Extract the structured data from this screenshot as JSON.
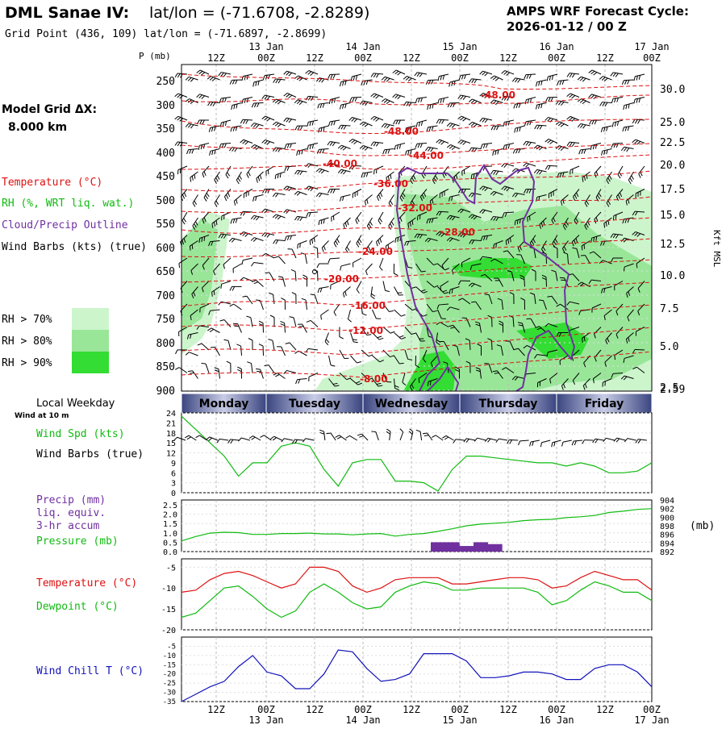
{
  "header": {
    "station": "DML Sanae IV:",
    "latlon": "lat/lon = (-71.6708, -2.8289)",
    "grid_point": "Grid Point (436, 109) lat/lon = (-71.6897, -2.8699)",
    "cycle_title": "AMPS WRF Forecast Cycle:",
    "cycle_value": "2026-01-12 / 00  Z"
  },
  "legend": {
    "model_grid": "Model Grid ΔX:",
    "model_grid_value": "8.000 km",
    "temperature": "Temperature (°C)",
    "rh": "RH (%, WRT liq. wat.)",
    "cloud": "Cloud/Precip Outline",
    "wind_barbs": "Wind Barbs (kts) (true)",
    "rh70": "RH > 70%",
    "rh80": "RH > 80%",
    "rh90": "RH > 90%",
    "local_weekday": "Local Weekday",
    "wind_10m": "Wind at 10 m",
    "wind_spd": "Wind Spd (kts)",
    "wind_barbs2": "Wind Barbs (true)",
    "precip": "Precip (mm)",
    "liq": "liq. equiv.",
    "accum": "3-hr accum",
    "pressure": "Pressure (mb)",
    "mb_unit": "(mb)",
    "temp2": "Temperature (°C)",
    "dewpoint": "Dewpoint (°C)",
    "windchill": "Wind Chill T (°C)",
    "p_axis": "P (mb)",
    "kft": "Kft MSL"
  },
  "colors": {
    "temp": "#dd1111",
    "rh_green": "#11bb11",
    "cloud": "#7030a0",
    "windchill": "#1111bb",
    "rh70": "#ccf5cc",
    "rh80": "#99e699",
    "rh90": "#33dd33",
    "banner_dark": "#3a4580",
    "banner_light": "#c8cce6"
  },
  "chart_data": [
    {
      "type": "time-height",
      "title": "Vertical profile",
      "time_labels_top": [
        "12Z",
        "00Z",
        "12Z",
        "00Z",
        "12Z",
        "00Z",
        "12Z",
        "00Z",
        "12Z",
        "00Z"
      ],
      "date_labels_top": [
        "13 Jan",
        "14 Jan",
        "15 Jan",
        "16 Jan",
        "17 Jan"
      ],
      "pressure_levels": [
        "250",
        "300",
        "350",
        "400",
        "450",
        "500",
        "550",
        "600",
        "650",
        "700",
        "750",
        "800",
        "850",
        "900"
      ],
      "height_labels": [
        "30.0",
        "25.0",
        "22.5",
        "20.0",
        "17.5",
        "15.0",
        "12.5",
        "10.0",
        "7.5",
        "5.0",
        "2.5",
        "2.59"
      ],
      "temperature_contours": [
        "-48.00",
        "-48.00",
        "-44.00",
        "-40.00",
        "-36.00",
        "-32.00",
        "-28.00",
        "-24.00",
        "-20.00",
        "-16.00",
        "-12.00",
        "-8.00"
      ]
    },
    {
      "type": "line",
      "title": "Wind Spd (kts)",
      "weekdays": [
        "Monday",
        "Tuesday",
        "Wednesday",
        "Thursday",
        "Friday"
      ],
      "yticks": [
        "24",
        "21",
        "18",
        "15",
        "12",
        "9",
        "6",
        "3",
        "0"
      ],
      "ylim": [
        0,
        24
      ],
      "series": [
        {
          "name": "Wind Spd",
          "values": [
            23,
            19,
            15,
            11,
            5,
            9,
            9,
            14,
            15,
            14,
            7,
            2,
            9,
            10,
            10,
            3.5,
            3.5,
            3,
            0.5,
            7,
            11,
            11,
            10.5,
            10,
            9.5,
            9,
            9,
            8,
            9,
            8,
            6,
            6,
            6.5,
            9
          ]
        }
      ]
    },
    {
      "type": "line+bar",
      "title": "Precip / Pressure",
      "yticks_left": [
        "2.5",
        "2.0",
        "1.5",
        "1.0",
        "0.5",
        "0.0"
      ],
      "yticks_right": [
        "904",
        "902",
        "900",
        "898",
        "896",
        "894",
        "892"
      ],
      "precip_ylim": [
        0,
        2.5
      ],
      "pressure_ylim": [
        892,
        904
      ],
      "pressure_values": [
        894.5,
        895.5,
        896.3,
        896.5,
        896.4,
        896.0,
        896.0,
        896.2,
        896.2,
        896.3,
        896.1,
        896.1,
        895.9,
        896.1,
        896.2,
        895.6,
        896.0,
        896.2,
        896.7,
        897.3,
        898.0,
        898.4,
        898.6,
        898.8,
        899.2,
        899.4,
        899.5,
        899.9,
        900.1,
        900.4,
        901.1,
        901.4,
        901.8,
        902.0
      ],
      "precip_values": [
        0,
        0,
        0,
        0,
        0,
        0,
        0,
        0,
        0,
        0,
        0,
        0,
        0,
        0,
        0,
        0,
        0,
        0,
        0.05,
        0.05,
        0.03,
        0.05,
        0.04,
        0,
        0,
        0,
        0,
        0,
        0,
        0,
        0,
        0,
        0,
        0
      ]
    },
    {
      "type": "line",
      "title": "Temperature / Dewpoint",
      "yticks": [
        "-5",
        "-10",
        "-15",
        "-20"
      ],
      "ylim": [
        -20,
        -3
      ],
      "series": [
        {
          "name": "Temperature",
          "values": [
            -11,
            -10.5,
            -8,
            -6.5,
            -6,
            -7,
            -8.5,
            -10,
            -9,
            -5,
            -5,
            -6,
            -9.5,
            -11,
            -10,
            -8,
            -7.5,
            -7.5,
            -7.5,
            -9,
            -9,
            -8.5,
            -8,
            -7.5,
            -7.5,
            -8,
            -10,
            -9.5,
            -7.5,
            -6,
            -7,
            -8,
            -8,
            -10.5
          ]
        },
        {
          "name": "Dewpoint",
          "values": [
            -17,
            -16,
            -13,
            -10,
            -9.5,
            -12,
            -15,
            -17,
            -15.5,
            -11,
            -9,
            -11,
            -13.5,
            -15,
            -14.5,
            -11,
            -9.5,
            -8.5,
            -9,
            -10.5,
            -10.5,
            -10,
            -10,
            -10,
            -10,
            -11,
            -14,
            -13,
            -10.5,
            -8.5,
            -9.5,
            -11,
            -11,
            -13
          ]
        }
      ]
    },
    {
      "type": "line",
      "title": "Wind Chill T (°C)",
      "time_labels_bottom": [
        "12Z",
        "00Z",
        "12Z",
        "00Z",
        "12Z",
        "00Z",
        "12Z",
        "00Z",
        "12Z",
        "00Z"
      ],
      "date_labels_bottom": [
        "13 Jan",
        "14 Jan",
        "15 Jan",
        "16 Jan",
        "17 Jan"
      ],
      "yticks": [
        "-5",
        "-10",
        "-15",
        "-20",
        "-25",
        "-30",
        "-35"
      ],
      "ylim": [
        -35,
        0
      ],
      "series": [
        {
          "name": "Wind Chill",
          "values": [
            -35,
            -31,
            -27,
            -24,
            -16,
            -10,
            -19,
            -21,
            -28,
            -28,
            -20,
            -7,
            -8,
            -17,
            -24,
            -23,
            -20,
            -9,
            -9,
            -9,
            -13,
            -22,
            -22,
            -21,
            -19,
            -19,
            -20,
            -23,
            -23,
            -17,
            -15,
            -15,
            -19,
            -27
          ]
        }
      ]
    }
  ]
}
